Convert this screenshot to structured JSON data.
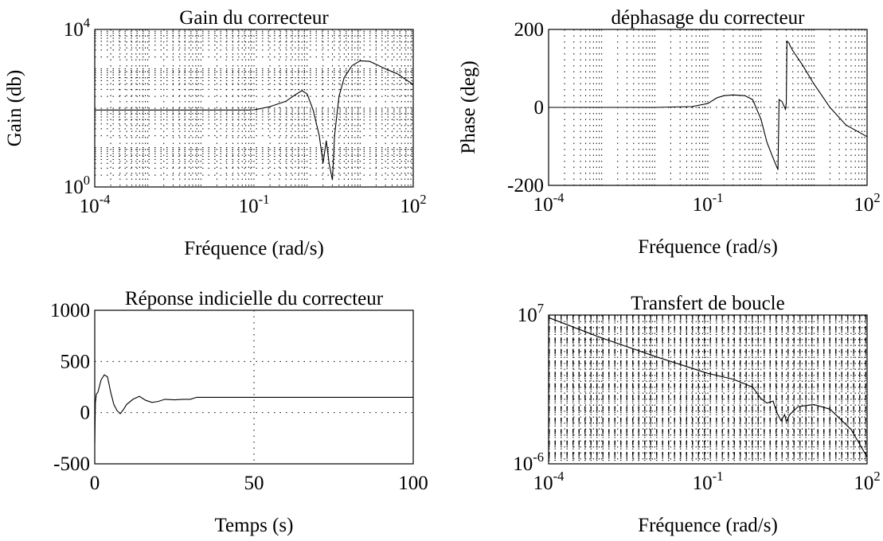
{
  "chart_data": [
    {
      "type": "line",
      "title": "Gain du correcteur",
      "xlabel": "Fréquence (rad/s)",
      "ylabel": "Gain (db)",
      "xscale": "log",
      "yscale": "log",
      "xlim": [
        0.0001,
        100
      ],
      "ylim": [
        1,
        10000
      ],
      "x_tick_labels": [
        {
          "base": "10",
          "exp": "-4",
          "value": 0.0001
        },
        {
          "base": "10",
          "exp": "-1",
          "value": 0.1
        },
        {
          "base": "10",
          "exp": "2",
          "value": 100
        }
      ],
      "y_tick_labels": [
        {
          "base": "10",
          "exp": "0",
          "value": 1
        },
        {
          "base": "10",
          "exp": "4",
          "value": 10000
        }
      ],
      "grid": true,
      "series": [
        {
          "x": [
            0.0001,
            0.003,
            0.03,
            0.08,
            0.1,
            0.12,
            0.2,
            0.4,
            0.6,
            0.8,
            1.0,
            1.3,
            1.7,
            2.0,
            2.3,
            2.6,
            3.0,
            3.3,
            3.7,
            4.0,
            5.0,
            7.0,
            10,
            15,
            20,
            30,
            50,
            100
          ],
          "y": [
            90,
            90,
            90,
            90,
            91,
            95,
            110,
            150,
            220,
            280,
            230,
            90,
            20,
            4,
            15,
            4,
            1.5,
            20,
            80,
            200,
            600,
            1200,
            1600,
            1550,
            1300,
            1000,
            750,
            400
          ]
        }
      ]
    },
    {
      "type": "line",
      "title": "déphasage du correcteur",
      "xlabel": "Fréquence (rad/s)",
      "ylabel": "Phase (deg)",
      "xscale": "log",
      "xlim": [
        0.0001,
        100
      ],
      "ylim": [
        -200,
        200
      ],
      "x_tick_labels": [
        {
          "base": "10",
          "exp": "-4",
          "value": 0.0001
        },
        {
          "base": "10",
          "exp": "-1",
          "value": 0.1
        },
        {
          "base": "10",
          "exp": "2",
          "value": 100
        }
      ],
      "y_tick_labels": [
        "-200",
        "0",
        "200"
      ],
      "y_tick_values": [
        -200,
        0,
        200
      ],
      "grid": true,
      "series": [
        {
          "x": [
            0.0001,
            0.01,
            0.05,
            0.1,
            0.15,
            0.2,
            0.3,
            0.5,
            0.7,
            1.0,
            1.3,
            1.7,
            2.1,
            2.2,
            2.5,
            2.9,
            3.0,
            3.1,
            3.4,
            3.5,
            4.0,
            6.0,
            10,
            20,
            40,
            100
          ],
          "y": [
            0,
            0,
            2,
            10,
            25,
            30,
            32,
            30,
            20,
            -30,
            -90,
            -130,
            -160,
            20,
            15,
            -5,
            10,
            170,
            165,
            160,
            145,
            110,
            60,
            0,
            -45,
            -75
          ]
        }
      ]
    },
    {
      "type": "line",
      "title": "Réponse indicielle du correcteur",
      "xlabel": "Temps (s)",
      "ylabel": "",
      "xlim": [
        0,
        100
      ],
      "ylim": [
        -500,
        1000
      ],
      "x_ticks": [
        0,
        50,
        100
      ],
      "y_ticks": [
        -500,
        0,
        500,
        1000
      ],
      "grid": true,
      "series": [
        {
          "x": [
            0,
            0.2,
            0.5,
            1,
            2,
            3,
            4,
            5,
            6,
            7,
            8,
            9,
            10,
            12,
            14,
            16,
            18,
            20,
            22,
            25,
            28,
            30,
            32,
            40,
            60,
            100
          ],
          "y": [
            -300,
            100,
            180,
            200,
            320,
            370,
            350,
            200,
            80,
            20,
            -10,
            30,
            80,
            130,
            160,
            120,
            100,
            110,
            130,
            125,
            130,
            130,
            150,
            150,
            150,
            150
          ]
        }
      ]
    },
    {
      "type": "line",
      "title": "Transfert de boucle",
      "xlabel": "Fréquence (rad/s)",
      "ylabel": "",
      "xscale": "log",
      "yscale": "log",
      "xlim": [
        0.0001,
        100
      ],
      "ylim": [
        1e-06,
        10000000
      ],
      "x_tick_labels": [
        {
          "base": "10",
          "exp": "-4",
          "value": 0.0001
        },
        {
          "base": "10",
          "exp": "-1",
          "value": 0.1
        },
        {
          "base": "10",
          "exp": "2",
          "value": 100
        }
      ],
      "y_tick_labels": [
        {
          "base": "10",
          "exp": "-6",
          "value": 1e-06
        },
        {
          "base": "10",
          "exp": "7",
          "value": 10000000
        }
      ],
      "grid": true,
      "series": [
        {
          "x": [
            0.0001,
            0.001,
            0.01,
            0.1,
            0.3,
            0.7,
            1.0,
            1.3,
            1.7,
            2.0,
            2.4,
            2.8,
            3.0,
            3.5,
            5,
            10,
            20,
            50,
            100
          ],
          "y": [
            6000000,
            100000,
            2500,
            80,
            25,
            5,
            0.5,
            0.2,
            0.3,
            0.03,
            0.006,
            0.02,
            0.005,
            0.02,
            0.1,
            0.15,
            0.06,
            0.001,
            4e-06
          ]
        }
      ]
    }
  ]
}
